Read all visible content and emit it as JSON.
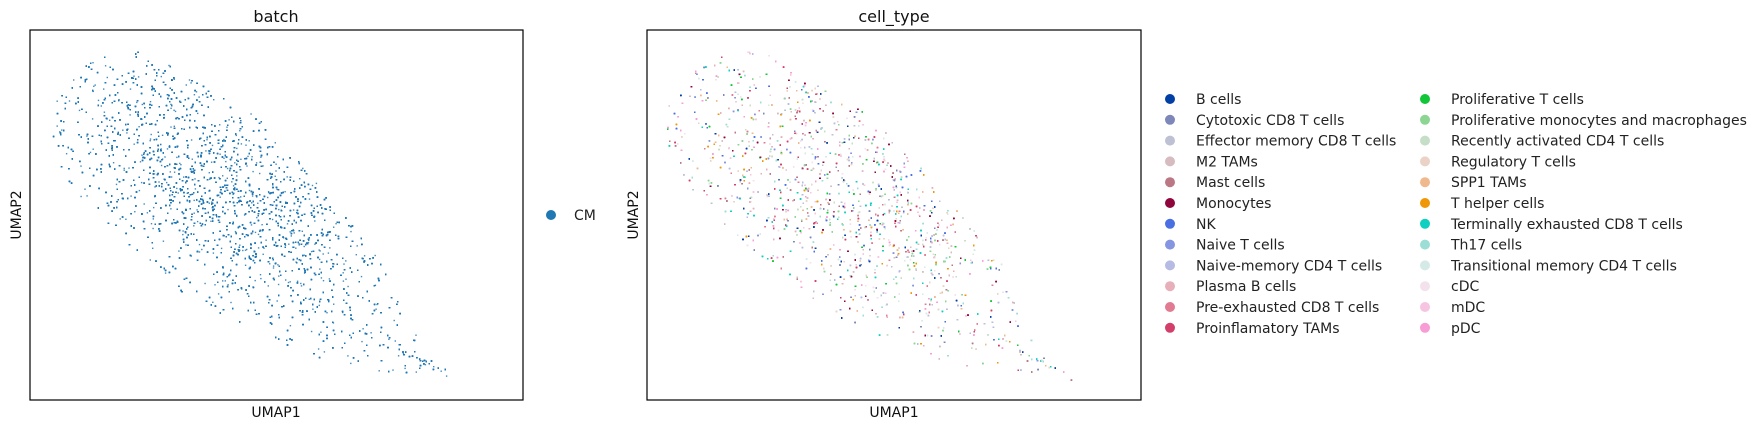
{
  "chart_data": [
    {
      "type": "scatter",
      "embedding": "umap",
      "title": "batch",
      "xlabel": "UMAP1",
      "ylabel": "UMAP2",
      "ticks": false,
      "grid": false,
      "legend_position": "right",
      "series": [
        {
          "name": "CM",
          "color": "#1f77b4"
        }
      ]
    },
    {
      "type": "scatter",
      "embedding": "umap",
      "title": "cell_type",
      "xlabel": "UMAP1",
      "ylabel": "UMAP2",
      "ticks": false,
      "grid": false,
      "legend_position": "right",
      "legend_columns": 2,
      "series": [
        {
          "name": "B cells",
          "color": "#023fa5"
        },
        {
          "name": "Cytotoxic CD8 T cells",
          "color": "#7d87b9"
        },
        {
          "name": "Effector memory CD8 T cells",
          "color": "#bec1d4"
        },
        {
          "name": "M2 TAMs",
          "color": "#d6bcc0"
        },
        {
          "name": "Mast cells",
          "color": "#bb7784"
        },
        {
          "name": "Monocytes",
          "color": "#8e063b"
        },
        {
          "name": "NK",
          "color": "#4a6fe3"
        },
        {
          "name": "Naive T cells",
          "color": "#8595e1"
        },
        {
          "name": "Naive-memory CD4 T cells",
          "color": "#b5bbe3"
        },
        {
          "name": "Plasma B cells",
          "color": "#e6afb9"
        },
        {
          "name": "Pre-exhausted CD8 T cells",
          "color": "#e07b91"
        },
        {
          "name": "Proinflamatory TAMs",
          "color": "#d33f6a"
        },
        {
          "name": "Proliferative T cells",
          "color": "#11c638"
        },
        {
          "name": "Proliferative monocytes and macrophages",
          "color": "#8dd593"
        },
        {
          "name": "Recently activated CD4 T cells",
          "color": "#c6dec7"
        },
        {
          "name": "Regulatory T cells",
          "color": "#ead3c6"
        },
        {
          "name": "SPP1 TAMs",
          "color": "#f0b98d"
        },
        {
          "name": "T helper cells",
          "color": "#ef9708"
        },
        {
          "name": "Terminally exhausted CD8 T cells",
          "color": "#0fcfc0"
        },
        {
          "name": "Th17 cells",
          "color": "#9cded6"
        },
        {
          "name": "Transitional memory CD4 T cells",
          "color": "#d5eae7"
        },
        {
          "name": "cDC",
          "color": "#f3e1eb"
        },
        {
          "name": "mDC",
          "color": "#f6c4e1"
        },
        {
          "name": "pDC",
          "color": "#f79cd4"
        }
      ]
    }
  ]
}
